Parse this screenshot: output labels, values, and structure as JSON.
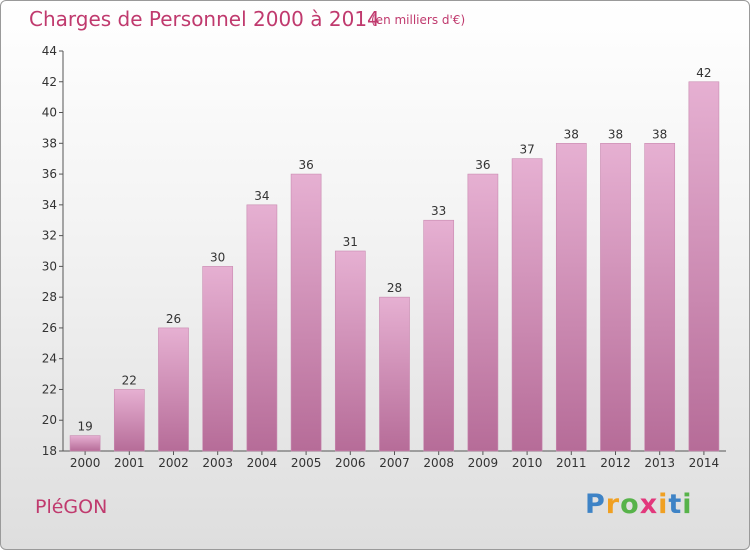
{
  "chart_data": {
    "type": "bar",
    "title": "Charges de Personnel 2000 à 2014",
    "subtitle": "(en milliers d'€)",
    "categories": [
      "2000",
      "2001",
      "2002",
      "2003",
      "2004",
      "2005",
      "2006",
      "2007",
      "2008",
      "2009",
      "2010",
      "2011",
      "2012",
      "2013",
      "2014"
    ],
    "values": [
      19,
      22,
      26,
      30,
      34,
      36,
      31,
      28,
      33,
      36,
      37,
      38,
      38,
      38,
      42
    ],
    "ylim": [
      18,
      44
    ],
    "yticks": [
      18,
      20,
      22,
      24,
      26,
      28,
      30,
      32,
      34,
      36,
      38,
      40,
      42,
      44
    ],
    "grid": false,
    "bar_color": "#dca6c6"
  },
  "footer": {
    "commune": "PléGON",
    "logo_text": "Proxiti"
  }
}
